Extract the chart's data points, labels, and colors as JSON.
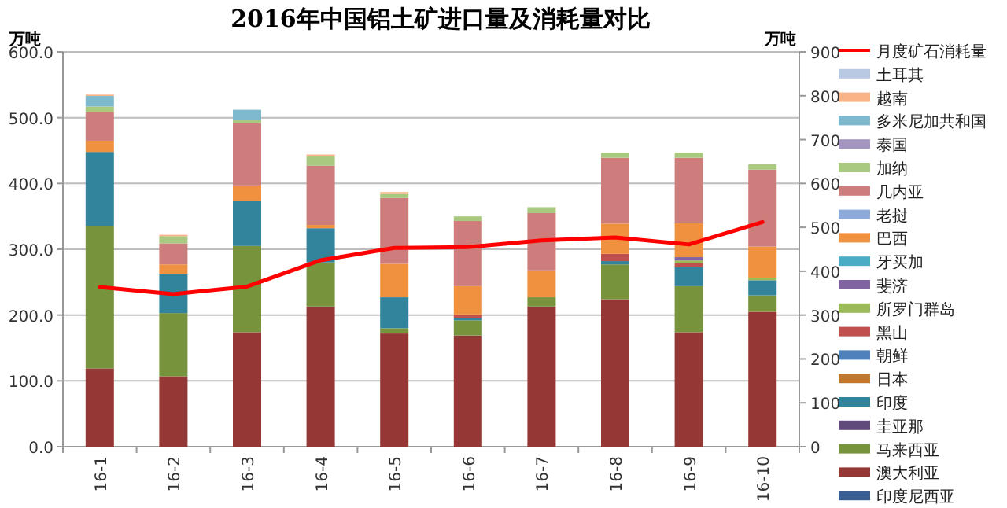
{
  "chart_data": {
    "type": "bar",
    "stacked": true,
    "title": "2016年中国铝土矿进口量及消耗量对比",
    "ylabel": "万吨",
    "y2label": "万吨",
    "categories": [
      "16-1",
      "16-2",
      "16-3",
      "16-4",
      "16-5",
      "16-6",
      "16-7",
      "16-8",
      "16-9",
      "16-10"
    ],
    "ylim": [
      0,
      600
    ],
    "yticks": [
      {
        "value": 0,
        "label": "0.0"
      },
      {
        "value": 100,
        "label": "100.0"
      },
      {
        "value": 200,
        "label": "200.0"
      },
      {
        "value": 300,
        "label": "300.0"
      },
      {
        "value": 400,
        "label": "400.0"
      },
      {
        "value": 500,
        "label": "500.0"
      },
      {
        "value": 600,
        "label": "600.0"
      }
    ],
    "y2lim": [
      0,
      900
    ],
    "y2ticks": [
      0,
      100,
      200,
      300,
      400,
      500,
      600,
      700,
      800,
      900
    ],
    "grid": "y",
    "legend": "right",
    "series": [
      {
        "name": "印度尼西亚",
        "color": "#3a5f94",
        "values": [
          null,
          null,
          null,
          null,
          null,
          null,
          null,
          null,
          null,
          null
        ]
      },
      {
        "name": "澳大利亚",
        "color": "#953735",
        "values": [
          119,
          107,
          174,
          213,
          172,
          169,
          213,
          224,
          174,
          205
        ]
      },
      {
        "name": "马来西亚",
        "color": "#77933c",
        "values": [
          216,
          96,
          131,
          67,
          8,
          23,
          14,
          53,
          70,
          25
        ]
      },
      {
        "name": "圭亚那",
        "color": "#604a7b",
        "values": [
          null,
          null,
          null,
          null,
          null,
          null,
          null,
          null,
          null,
          null
        ]
      },
      {
        "name": "印度",
        "color": "#31849b",
        "values": [
          113,
          59,
          68,
          52,
          47,
          4,
          null,
          5,
          29,
          23
        ]
      },
      {
        "name": "日本",
        "color": "#c0782f",
        "values": [
          null,
          null,
          null,
          null,
          null,
          null,
          null,
          null,
          null,
          null
        ]
      },
      {
        "name": "朝鲜",
        "color": "#4f81bd",
        "values": [
          null,
          null,
          null,
          null,
          null,
          null,
          null,
          null,
          null,
          null
        ]
      },
      {
        "name": "黑山",
        "color": "#c0504d",
        "values": [
          null,
          null,
          null,
          null,
          null,
          5,
          null,
          11,
          6,
          null
        ]
      },
      {
        "name": "所罗门群岛",
        "color": "#9bbb59",
        "values": [
          null,
          null,
          null,
          null,
          null,
          null,
          null,
          null,
          4,
          4
        ]
      },
      {
        "name": "斐济",
        "color": "#8064a2",
        "values": [
          null,
          null,
          null,
          null,
          null,
          null,
          null,
          null,
          5,
          null
        ]
      },
      {
        "name": "牙买加",
        "color": "#4bacc6",
        "values": [
          null,
          null,
          null,
          null,
          null,
          null,
          null,
          null,
          null,
          null
        ]
      },
      {
        "name": "巴西",
        "color": "#f0913f",
        "values": [
          17,
          15,
          24,
          5,
          51,
          43,
          41,
          46,
          52,
          47
        ]
      },
      {
        "name": "老挝",
        "color": "#8eaadb",
        "values": [
          null,
          null,
          null,
          null,
          null,
          null,
          null,
          null,
          null,
          null
        ]
      },
      {
        "name": "几内亚",
        "color": "#cd7e7c",
        "values": [
          43,
          32,
          95,
          90,
          100,
          99,
          87,
          100,
          99,
          117
        ]
      },
      {
        "name": "加纳",
        "color": "#a8c97f",
        "values": [
          9,
          11,
          5,
          14,
          6,
          7,
          9,
          8,
          8,
          8
        ]
      },
      {
        "name": "泰国",
        "color": "#a395c0",
        "values": [
          null,
          null,
          null,
          null,
          null,
          null,
          null,
          null,
          null,
          null
        ]
      },
      {
        "name": "多米尼加共和国",
        "color": "#7dbad0",
        "values": [
          16,
          null,
          15,
          null,
          null,
          null,
          null,
          null,
          null,
          null
        ]
      },
      {
        "name": "越南",
        "color": "#fab287",
        "values": [
          2,
          2,
          null,
          3,
          3,
          null,
          null,
          null,
          null,
          null
        ]
      },
      {
        "name": "土耳其",
        "color": "#b9c9e4",
        "values": [
          null,
          null,
          null,
          null,
          null,
          null,
          null,
          null,
          null,
          null
        ]
      },
      {
        "name": "月度矿石消耗量",
        "color": "#ff0000",
        "type": "line",
        "axis": "y2",
        "values": [
          364,
          348,
          365,
          425,
          453,
          455,
          470,
          477,
          461,
          512
        ]
      }
    ]
  }
}
